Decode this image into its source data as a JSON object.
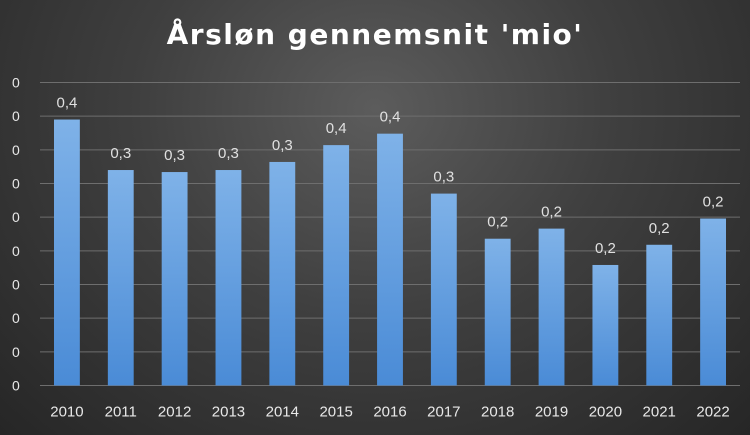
{
  "chart_data": {
    "type": "bar",
    "title": "Årsløn gennemsnit 'mio'",
    "categories": [
      "2010",
      "2011",
      "2012",
      "2013",
      "2014",
      "2015",
      "2016",
      "2017",
      "2018",
      "2019",
      "2020",
      "2021",
      "2022"
    ],
    "values": [
      0.395,
      0.32,
      0.317,
      0.32,
      0.332,
      0.357,
      0.374,
      0.285,
      0.218,
      0.233,
      0.179,
      0.209,
      0.248
    ],
    "data_labels": [
      "0,4",
      "0,3",
      "0,3",
      "0,3",
      "0,3",
      "0,4",
      "0,4",
      "0,3",
      "0,2",
      "0,2",
      "0,2",
      "0,2",
      "0,2"
    ],
    "y_tick_labels": [
      "0",
      "0",
      "0",
      "0",
      "0",
      "0",
      "0",
      "0",
      "0",
      "0"
    ],
    "ylim": [
      0,
      0.45
    ],
    "xlabel": "",
    "ylabel": "",
    "grid": true,
    "legend": "none",
    "colors": {
      "bar_top": "#7fb2e8",
      "bar_bottom": "#4a8bd6",
      "background": "#3f3f3f",
      "text": "#e8e8e8"
    }
  }
}
